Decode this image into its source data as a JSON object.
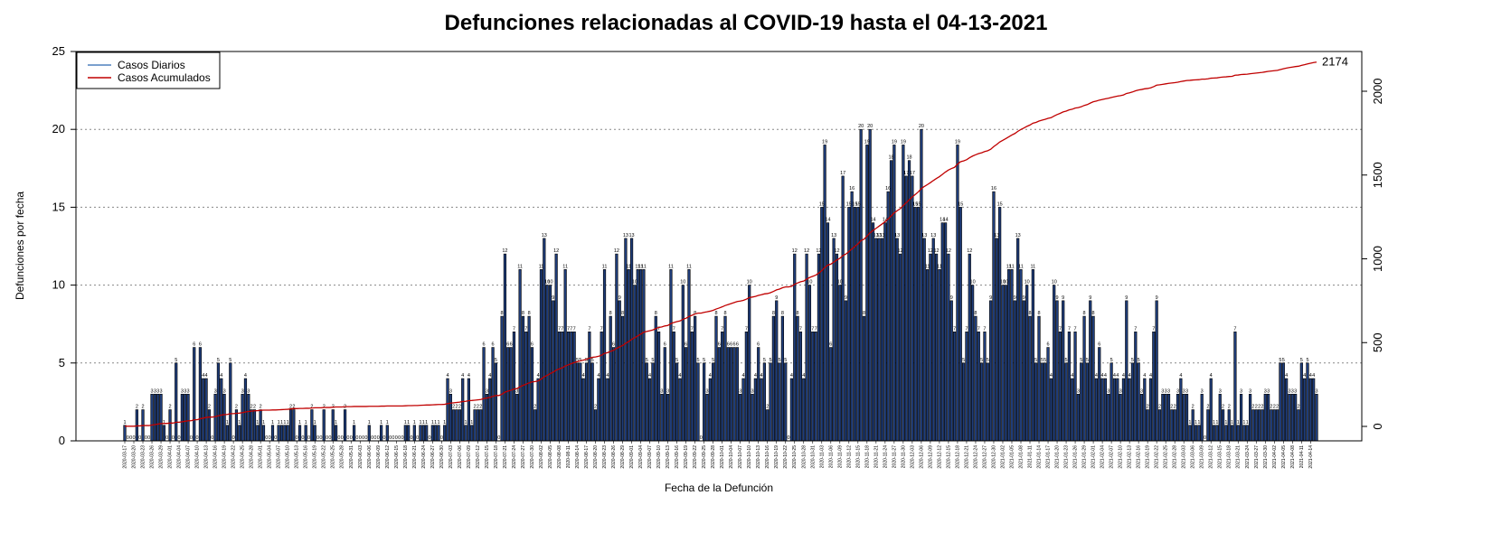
{
  "chart_data": {
    "type": "bar",
    "title": "Defunciones relacionadas al COVID-19 hasta el 04-13-2021",
    "xlabel": "Fecha de la Defunción",
    "ylabel": "Defunciones por fecha",
    "ylim": [
      0,
      25
    ],
    "y_ticks": [
      "0",
      "5",
      "10",
      "15",
      "20",
      "25"
    ],
    "y2lim": [
      0,
      2174
    ],
    "y2_ticks": [
      "0",
      "500",
      "1000",
      "1500",
      "2000"
    ],
    "grid": "horizontal-dotted",
    "legend": {
      "position": "top-left",
      "entries": [
        {
          "label": "Casos Diarios",
          "color": "#4f81bd"
        },
        {
          "label": "Casos Acumulados",
          "color": "#c00000"
        }
      ]
    },
    "colors": {
      "bar_fill": "#1f3d7a",
      "bar_stroke": "#000000",
      "cumulative_line": "#c00000"
    },
    "start_date": "2020-03-17",
    "end_date": "2021-04-11",
    "cumulative_final_label": "2174",
    "daily_values": [
      1,
      0,
      0,
      0,
      2,
      0,
      2,
      0,
      0,
      3,
      3,
      3,
      3,
      1,
      0,
      2,
      0,
      5,
      0,
      3,
      3,
      3,
      0,
      6,
      0,
      6,
      4,
      4,
      2,
      0,
      3,
      5,
      4,
      3,
      1,
      5,
      0,
      2,
      1,
      3,
      4,
      3,
      2,
      2,
      1,
      2,
      1,
      0,
      0,
      1,
      0,
      1,
      1,
      1,
      1,
      2,
      2,
      0,
      1,
      0,
      1,
      0,
      2,
      1,
      0,
      0,
      2,
      0,
      0,
      2,
      1,
      0,
      0,
      2,
      0,
      0,
      1,
      0,
      0,
      0,
      0,
      1,
      0,
      0,
      0,
      1,
      0,
      1,
      0,
      0,
      0,
      0,
      0,
      1,
      1,
      0,
      1,
      0,
      1,
      1,
      1,
      0,
      1,
      1,
      1,
      0,
      1,
      4,
      3,
      2,
      2,
      2,
      4,
      1,
      4,
      1,
      2,
      2,
      2,
      6,
      3,
      4,
      6,
      5,
      0,
      8,
      12,
      6,
      6,
      7,
      3,
      11,
      8,
      7,
      8,
      6,
      2,
      4,
      11,
      13,
      10,
      10,
      9,
      12,
      7,
      7,
      11,
      7,
      7,
      7,
      5,
      5,
      4,
      5,
      7,
      5,
      2,
      4,
      7,
      11,
      4,
      8,
      6,
      12,
      9,
      8,
      13,
      11,
      13,
      10,
      11,
      11,
      11,
      5,
      4,
      5,
      8,
      7,
      3,
      6,
      3,
      11,
      7,
      5,
      4,
      10,
      6,
      11,
      7,
      8,
      5,
      0,
      5,
      3,
      4,
      5,
      8,
      6,
      7,
      8,
      6,
      6,
      6,
      6,
      3,
      4,
      7,
      10,
      3,
      4,
      6,
      4,
      5,
      2,
      5,
      8,
      9,
      5,
      8,
      5,
      0,
      4,
      12,
      8,
      7,
      4,
      12,
      10,
      7,
      7,
      12,
      15,
      19,
      14,
      6,
      13,
      12,
      10,
      17,
      9,
      15,
      16,
      15,
      15,
      20,
      8,
      19,
      20,
      14,
      13,
      13,
      13,
      14,
      16,
      18,
      19,
      13,
      12,
      19,
      17,
      18,
      17,
      15,
      15,
      20,
      13,
      11,
      12,
      13,
      12,
      11,
      14,
      14,
      12,
      9,
      7,
      19,
      15,
      5,
      7,
      12,
      10,
      8,
      7,
      5,
      7,
      5,
      9,
      16,
      13,
      15,
      10,
      10,
      11,
      11,
      9,
      13,
      11,
      9,
      10,
      8,
      11,
      5,
      8,
      5,
      5,
      6,
      4,
      10,
      9,
      7,
      9,
      5,
      7,
      4,
      7,
      3,
      5,
      8,
      5,
      9,
      8,
      4,
      6,
      4,
      4,
      3,
      5,
      4,
      4,
      3,
      4,
      9,
      4,
      5,
      7,
      5,
      3,
      4,
      2,
      4,
      7,
      9,
      2,
      3,
      3,
      3,
      2,
      2,
      3,
      4,
      3,
      3,
      1,
      2,
      1,
      1,
      3,
      0,
      2,
      4,
      1,
      1,
      3,
      2,
      1,
      2,
      1,
      7,
      1,
      3,
      1,
      1,
      3,
      2,
      2,
      2,
      2,
      3,
      3,
      2,
      2,
      2,
      5,
      5,
      4,
      3,
      3,
      3,
      2,
      5,
      4,
      5,
      4,
      4,
      3
    ]
  }
}
